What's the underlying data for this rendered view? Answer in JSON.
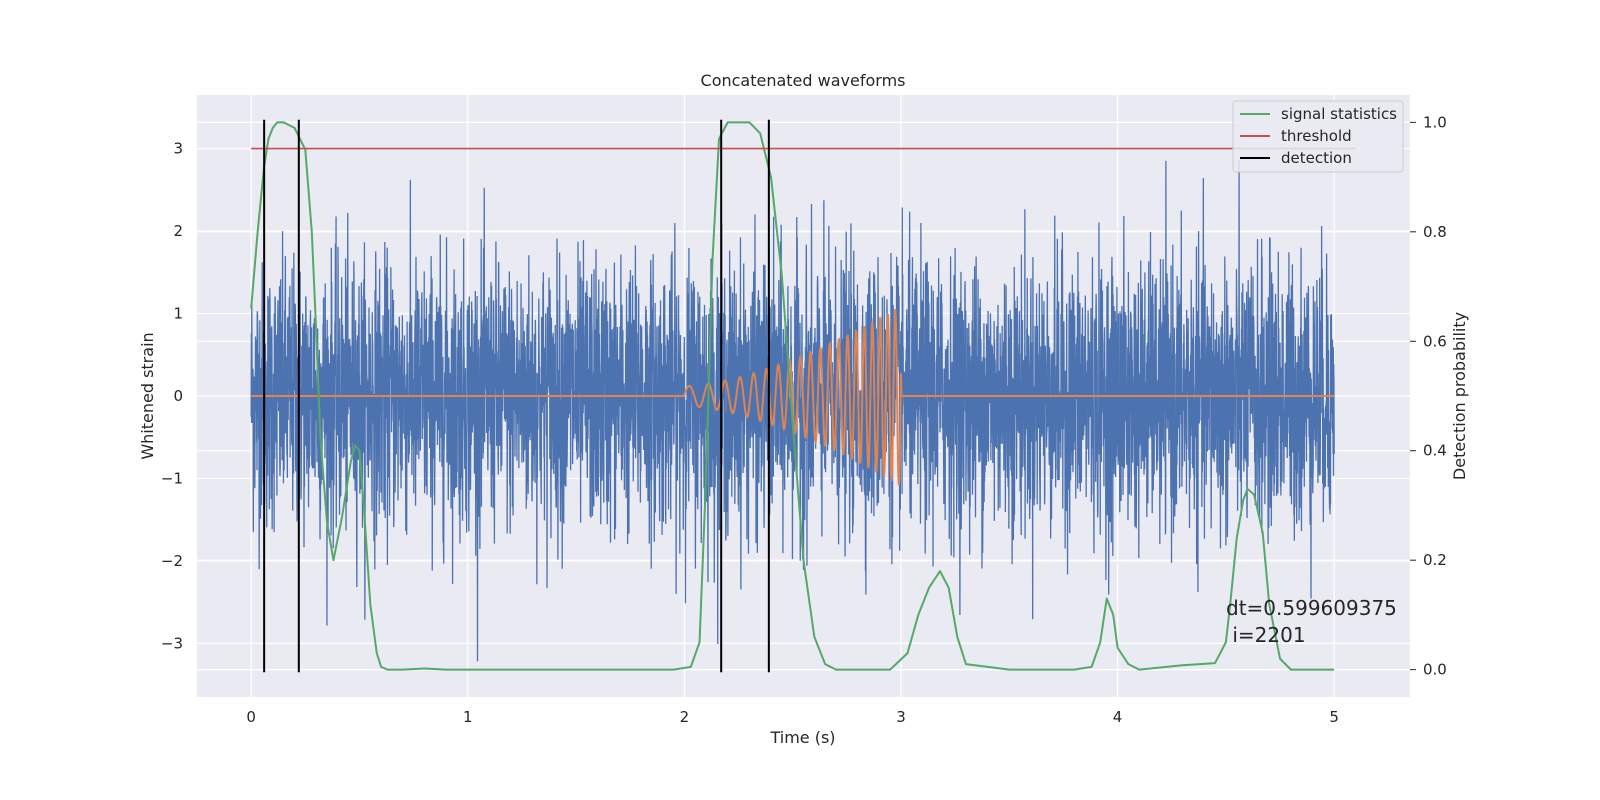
{
  "chart_data": {
    "type": "line",
    "title": "Concatenated waveforms",
    "xlabel": "Time (s)",
    "ylabel_left": "Whitened strain",
    "ylabel_right": "Detection probability",
    "xlim": [
      -0.25,
      5.35
    ],
    "ylim_left": [
      -3.65,
      3.65
    ],
    "ylim_right": [
      -0.05,
      1.05
    ],
    "x_ticks": [
      0,
      1,
      2,
      3,
      4,
      5
    ],
    "y_left_ticks": [
      -3,
      -2,
      -1,
      0,
      1,
      2,
      3
    ],
    "y_right_ticks": [
      0.0,
      0.2,
      0.4,
      0.6,
      0.8,
      1.0
    ],
    "y_left_tick_labels": [
      "−3",
      "−2",
      "−1",
      "0",
      "1",
      "2",
      "3"
    ],
    "y_right_tick_labels": [
      "0.0",
      "0.2",
      "0.4",
      "0.6",
      "0.8",
      "1.0"
    ],
    "grid": true,
    "legend_position": "top-right",
    "colors": {
      "background": "#eaeaf2",
      "grid": "#ffffff",
      "strain": "#4c72b0",
      "template": "#dd8452",
      "statistics": "#55a868",
      "threshold": "#c44e52",
      "detection": "#000000"
    },
    "series": [
      {
        "name": "",
        "axis": "left",
        "kind": "noise",
        "x_range": [
          0,
          5
        ],
        "envelope_std": 0.8,
        "extremes": [
          -3.3,
          3.3
        ]
      },
      {
        "name": "",
        "axis": "left",
        "kind": "chirp",
        "x_range": [
          0,
          5
        ],
        "chirp_start": 2.0,
        "chirp_end": 3.0,
        "start_amplitude": 0.12,
        "peak_amplitude": 1.1,
        "start_frequency": 10,
        "end_frequency": 30
      },
      {
        "name": "signal statistics",
        "axis": "right",
        "x": [
          0,
          0.03,
          0.06,
          0.08,
          0.1,
          0.12,
          0.15,
          0.2,
          0.25,
          0.28,
          0.3,
          0.32,
          0.35,
          0.38,
          0.42,
          0.46,
          0.48,
          0.5,
          0.52,
          0.55,
          0.58,
          0.6,
          0.63,
          0.66,
          0.7,
          0.8,
          0.9,
          1.0,
          1.5,
          1.95,
          2.03,
          2.07,
          2.1,
          2.13,
          2.16,
          2.2,
          2.3,
          2.35,
          2.4,
          2.45,
          2.5,
          2.55,
          2.6,
          2.65,
          2.7,
          2.8,
          2.95,
          3.03,
          3.08,
          3.13,
          3.18,
          3.22,
          3.26,
          3.3,
          3.5,
          3.8,
          3.88,
          3.92,
          3.95,
          3.98,
          4.0,
          4.05,
          4.1,
          4.3,
          4.45,
          4.5,
          4.52,
          4.55,
          4.58,
          4.6,
          4.63,
          4.67,
          4.7,
          4.75,
          4.8,
          5.0
        ],
        "values": [
          0.66,
          0.8,
          0.92,
          0.97,
          0.99,
          1.0,
          1.0,
          0.99,
          0.95,
          0.8,
          0.62,
          0.42,
          0.27,
          0.2,
          0.28,
          0.38,
          0.41,
          0.4,
          0.3,
          0.12,
          0.03,
          0.005,
          0.0,
          0.0,
          0.0,
          0.002,
          0.0,
          0.0,
          0.0,
          0.0,
          0.005,
          0.05,
          0.35,
          0.75,
          0.97,
          1.0,
          1.0,
          0.98,
          0.9,
          0.72,
          0.45,
          0.2,
          0.06,
          0.01,
          0.0,
          0.0,
          0.0,
          0.03,
          0.1,
          0.15,
          0.18,
          0.15,
          0.06,
          0.01,
          0.0,
          0.0,
          0.005,
          0.05,
          0.13,
          0.1,
          0.04,
          0.01,
          0.0,
          0.008,
          0.012,
          0.05,
          0.12,
          0.24,
          0.31,
          0.33,
          0.32,
          0.25,
          0.12,
          0.02,
          0.0,
          0.0
        ]
      },
      {
        "name": "threshold",
        "axis": "left",
        "x": [
          0,
          5.1
        ],
        "values": [
          3.0,
          3.0
        ]
      }
    ],
    "detection": {
      "name": "detection",
      "x": [
        0.06,
        0.22,
        2.17,
        2.39
      ],
      "y_range": [
        -3.35,
        3.35
      ]
    },
    "legend": [
      "signal statistics",
      "threshold",
      "detection"
    ],
    "annotation": {
      "line1": "dt=0.599609375",
      "line2": " i=2201"
    }
  }
}
